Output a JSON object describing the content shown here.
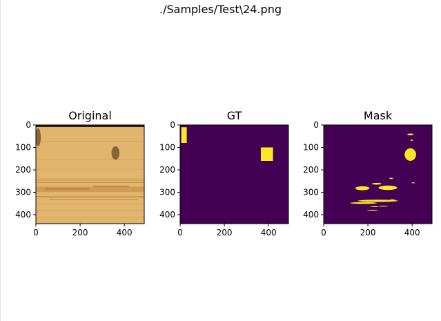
{
  "figure": {
    "suptitle": "./Samples/Test\\24.png"
  },
  "colors": {
    "viridis_low": "#440154",
    "viridis_high": "#fde725",
    "wood_light": "#e2b56e",
    "wood_mid": "#d6a45c",
    "wood_dark": "#b8843f",
    "knot": "#7a5530"
  },
  "chart_data": [
    {
      "type": "heatmap",
      "title": "Original",
      "content": "photograph of a wood surface with grain and knots",
      "xlim": [
        0,
        490
      ],
      "ylim": [
        440,
        0
      ],
      "xticks": [
        0,
        200,
        400
      ],
      "yticks": [
        0,
        100,
        200,
        300,
        400
      ],
      "features": [
        {
          "kind": "knot",
          "x": 360,
          "y": 125,
          "rx": 18,
          "ry": 30
        },
        {
          "kind": "knot",
          "x": 10,
          "y": 55,
          "rx": 12,
          "ry": 40
        }
      ]
    },
    {
      "type": "heatmap",
      "title": "GT",
      "colormap": "viridis",
      "xlim": [
        0,
        490
      ],
      "ylim": [
        440,
        0
      ],
      "xticks": [
        0,
        200,
        400
      ],
      "yticks": [
        0,
        100,
        200,
        300,
        400
      ],
      "positive_regions": [
        {
          "x0": 5,
          "x1": 30,
          "y0": 10,
          "y1": 80
        },
        {
          "x0": 365,
          "x1": 420,
          "y0": 100,
          "y1": 160
        }
      ]
    },
    {
      "type": "heatmap",
      "title": "Mask",
      "colormap": "viridis",
      "xlim": [
        0,
        490
      ],
      "ylim": [
        440,
        0
      ],
      "xticks": [
        0,
        200,
        400
      ],
      "yticks": [
        0,
        100,
        200,
        300,
        400
      ],
      "positive_blobs": [
        {
          "cx": 392,
          "cy": 42,
          "rx": 14,
          "ry": 4
        },
        {
          "cx": 398,
          "cy": 68,
          "rx": 5,
          "ry": 3
        },
        {
          "cx": 392,
          "cy": 132,
          "rx": 26,
          "ry": 28
        },
        {
          "cx": 175,
          "cy": 282,
          "rx": 32,
          "ry": 9
        },
        {
          "cx": 240,
          "cy": 262,
          "rx": 22,
          "ry": 4
        },
        {
          "cx": 290,
          "cy": 280,
          "rx": 42,
          "ry": 10
        },
        {
          "cx": 305,
          "cy": 238,
          "rx": 8,
          "ry": 3
        },
        {
          "cx": 405,
          "cy": 258,
          "rx": 7,
          "ry": 2
        },
        {
          "cx": 180,
          "cy": 348,
          "rx": 60,
          "ry": 4
        },
        {
          "cx": 245,
          "cy": 338,
          "rx": 90,
          "ry": 5
        },
        {
          "cx": 230,
          "cy": 364,
          "rx": 20,
          "ry": 2
        },
        {
          "cx": 270,
          "cy": 362,
          "rx": 22,
          "ry": 2
        },
        {
          "cx": 220,
          "cy": 380,
          "rx": 24,
          "ry": 2
        },
        {
          "cx": 312,
          "cy": 333,
          "rx": 12,
          "ry": 2
        }
      ]
    }
  ]
}
